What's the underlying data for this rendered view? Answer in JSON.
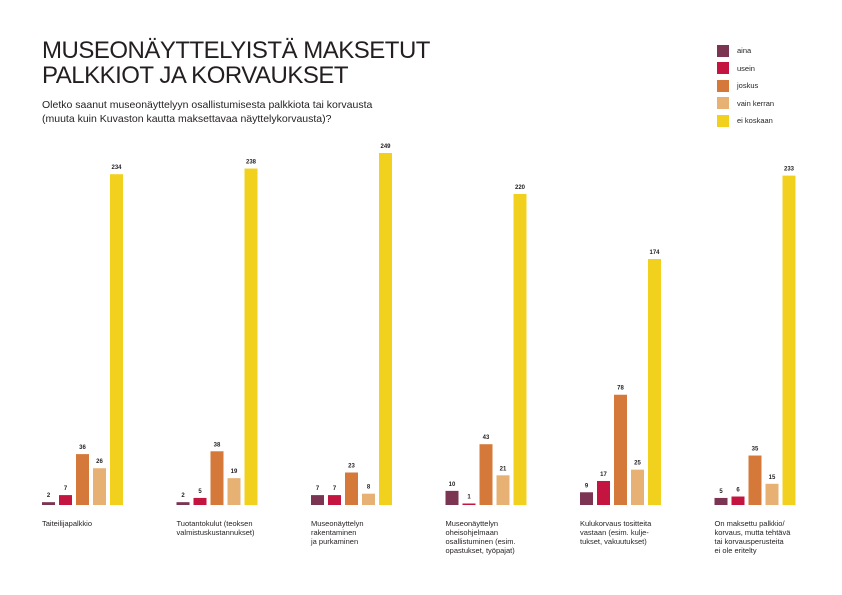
{
  "title": "MUSEONÄYTTELYISTÄ MAKSETUT\nPALKKIOT JA KORVAUKSET",
  "subtitle": "Oletko saanut museonäyttelyyn osallistumisesta palkkiota tai korvausta\n(muuta kuin Kuvaston kautta maksettavaa näyttelykorvausta)?",
  "chart_data": {
    "type": "bar",
    "title": "MUSEONÄYTTELYISTÄ MAKSETUT PALKKIOT JA KORVAUKSET",
    "categories": [
      [
        "Taiteilijapalkkio"
      ],
      [
        "Tuotantokulut (teoksen",
        "valmistuskustannukset)"
      ],
      [
        "Museonäyttelyn",
        "rakentaminen",
        "ja purkaminen"
      ],
      [
        "Museonäyttelyn",
        "oheisohjelmaan",
        "osallistuminen (esim.",
        "opastukset, työpajat)"
      ],
      [
        "Kulukorvaus tositteita",
        "vastaan (esim. kulje-",
        "tukset, vakuutukset)"
      ],
      [
        "On maksettu palkkio/",
        "korvaus, mutta tehtävä",
        "tai korvausperusteita",
        "ei ole eritelty"
      ]
    ],
    "series": [
      {
        "name": "aina",
        "color": "#7b3553",
        "values": [
          2,
          2,
          7,
          10,
          9,
          5
        ]
      },
      {
        "name": "usein",
        "color": "#c3153f",
        "values": [
          7,
          5,
          7,
          1,
          17,
          6
        ]
      },
      {
        "name": "joskus",
        "color": "#d5793a",
        "values": [
          36,
          38,
          23,
          43,
          78,
          35
        ]
      },
      {
        "name": "vain kerran",
        "color": "#e7b173",
        "values": [
          26,
          19,
          8,
          21,
          25,
          15
        ]
      },
      {
        "name": "ei koskaan",
        "color": "#f2d01e",
        "values": [
          234,
          238,
          249,
          220,
          174,
          233
        ]
      }
    ],
    "xlabel": "",
    "ylabel": "",
    "ylim": [
      0,
      249
    ],
    "grid": false,
    "legend": "top-right"
  }
}
